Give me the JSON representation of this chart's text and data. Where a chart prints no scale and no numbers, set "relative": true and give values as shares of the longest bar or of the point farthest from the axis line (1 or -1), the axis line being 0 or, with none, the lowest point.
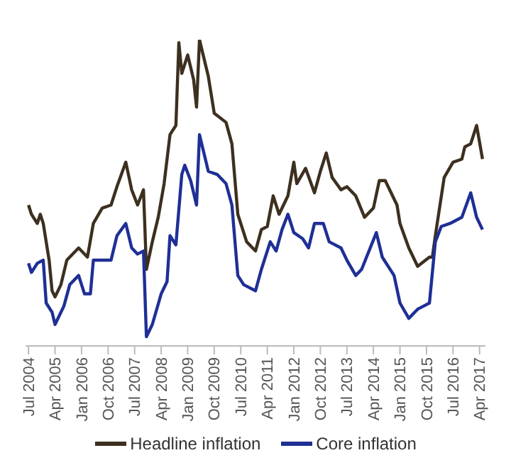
{
  "chart_data": {
    "type": "line",
    "relative": true,
    "legend": "bottom",
    "line_style": "solid",
    "marker": "none",
    "xlim": [
      "2004-06",
      "2017-06"
    ],
    "xticks": [
      {
        "value": "2004-07",
        "label": "Jul 2004"
      },
      {
        "value": "2005-04",
        "label": "Apr 2005"
      },
      {
        "value": "2006-01",
        "label": "Jan 2006"
      },
      {
        "value": "2006-10",
        "label": "Oct 2006"
      },
      {
        "value": "2007-07",
        "label": "Jul 2007"
      },
      {
        "value": "2008-04",
        "label": "Apr 2008"
      },
      {
        "value": "2009-01",
        "label": "Jan 2009"
      },
      {
        "value": "2009-10",
        "label": "Oct 2009"
      },
      {
        "value": "2010-07",
        "label": "Jul 2010"
      },
      {
        "value": "2011-04",
        "label": "Apr 2011"
      },
      {
        "value": "2012-01",
        "label": "Jan 2012"
      },
      {
        "value": "2012-10",
        "label": "Oct 2012"
      },
      {
        "value": "2013-07",
        "label": "Jul 2013"
      },
      {
        "value": "2014-04",
        "label": "Apr 2014"
      },
      {
        "value": "2015-01",
        "label": "Jan 2015"
      },
      {
        "value": "2015-10",
        "label": "Oct 2015"
      },
      {
        "value": "2016-07",
        "label": "Jul 2016"
      },
      {
        "value": "2017-04",
        "label": "Apr 2017"
      }
    ],
    "series": [
      {
        "name": "Headline inflation",
        "color": "#3d3020",
        "x": [
          "2004-07",
          "2004-08",
          "2004-10",
          "2004-11",
          "2004-12",
          "2005-02",
          "2005-03",
          "2005-04",
          "2005-06",
          "2005-08",
          "2005-12",
          "2006-03",
          "2006-05",
          "2006-08",
          "2006-11",
          "2007-01",
          "2007-04",
          "2007-06",
          "2007-08",
          "2007-10",
          "2007-11",
          "2008-01",
          "2008-03",
          "2008-05",
          "2008-07",
          "2008-09",
          "2008-10",
          "2008-11",
          "2009-01",
          "2009-03",
          "2009-04",
          "2009-05",
          "2009-08",
          "2009-10",
          "2010-02",
          "2010-04",
          "2010-06",
          "2010-09",
          "2010-12",
          "2011-02",
          "2011-04",
          "2011-06",
          "2011-08",
          "2011-11",
          "2012-01",
          "2012-02",
          "2012-05",
          "2012-08",
          "2012-10",
          "2012-12",
          "2013-02",
          "2013-05",
          "2013-07",
          "2013-10",
          "2014-01",
          "2014-04",
          "2014-06",
          "2014-08",
          "2014-12",
          "2015-01",
          "2015-04",
          "2015-07",
          "2015-11",
          "2015-12",
          "2016-01",
          "2016-04",
          "2016-07",
          "2016-10",
          "2016-11",
          "2017-01",
          "2017-03",
          "2017-05"
        ],
        "values": [
          0.46,
          0.43,
          0.4,
          0.43,
          0.4,
          0.28,
          0.18,
          0.16,
          0.2,
          0.28,
          0.32,
          0.29,
          0.4,
          0.45,
          0.46,
          0.52,
          0.6,
          0.51,
          0.46,
          0.51,
          0.25,
          0.34,
          0.42,
          0.53,
          0.69,
          0.72,
          0.99,
          0.89,
          0.95,
          0.87,
          0.78,
          1,
          0.88,
          0.76,
          0.73,
          0.66,
          0.43,
          0.34,
          0.31,
          0.38,
          0.39,
          0.49,
          0.43,
          0.49,
          0.6,
          0.53,
          0.58,
          0.5,
          0.57,
          0.63,
          0.55,
          0.51,
          0.52,
          0.49,
          0.42,
          0.45,
          0.54,
          0.54,
          0.46,
          0.4,
          0.32,
          0.26,
          0.29,
          0.29,
          0.36,
          0.55,
          0.6,
          0.61,
          0.65,
          0.66,
          0.72,
          0.61
        ]
      },
      {
        "name": "Core inflation",
        "color": "#1f2f96",
        "x": [
          "2004-07",
          "2004-08",
          "2004-10",
          "2004-12",
          "2005-01",
          "2005-03",
          "2005-04",
          "2005-07",
          "2005-09",
          "2005-12",
          "2006-02",
          "2006-04",
          "2006-05",
          "2006-08",
          "2006-11",
          "2007-01",
          "2007-04",
          "2007-06",
          "2007-08",
          "2007-10",
          "2007-11",
          "2008-01",
          "2008-04",
          "2008-06",
          "2008-07",
          "2008-09",
          "2008-11",
          "2008-12",
          "2009-02",
          "2009-04",
          "2009-05",
          "2009-08",
          "2009-11",
          "2010-02",
          "2010-04",
          "2010-06",
          "2010-08",
          "2010-12",
          "2011-02",
          "2011-05",
          "2011-07",
          "2011-09",
          "2011-11",
          "2012-01",
          "2012-04",
          "2012-06",
          "2012-08",
          "2012-11",
          "2013-01",
          "2013-05",
          "2013-07",
          "2013-10",
          "2013-12",
          "2014-05",
          "2014-07",
          "2014-11",
          "2015-01",
          "2015-04",
          "2015-07",
          "2015-09",
          "2015-11",
          "2016-01",
          "2016-03",
          "2016-06",
          "2016-10",
          "2017-01",
          "2017-03",
          "2017-05"
        ],
        "values": [
          0.27,
          0.24,
          0.27,
          0.28,
          0.14,
          0.11,
          0.07,
          0.13,
          0.2,
          0.23,
          0.17,
          0.17,
          0.28,
          0.28,
          0.28,
          0.36,
          0.4,
          0.32,
          0.3,
          0.31,
          0.03,
          0.07,
          0.17,
          0.21,
          0.36,
          0.33,
          0.56,
          0.59,
          0.54,
          0.46,
          0.69,
          0.57,
          0.56,
          0.53,
          0.46,
          0.23,
          0.2,
          0.18,
          0.25,
          0.34,
          0.31,
          0.38,
          0.43,
          0.37,
          0.35,
          0.32,
          0.4,
          0.4,
          0.34,
          0.32,
          0.28,
          0.23,
          0.25,
          0.37,
          0.29,
          0.23,
          0.14,
          0.09,
          0.12,
          0.13,
          0.14,
          0.34,
          0.39,
          0.4,
          0.42,
          0.5,
          0.42,
          0.38
        ]
      }
    ]
  }
}
